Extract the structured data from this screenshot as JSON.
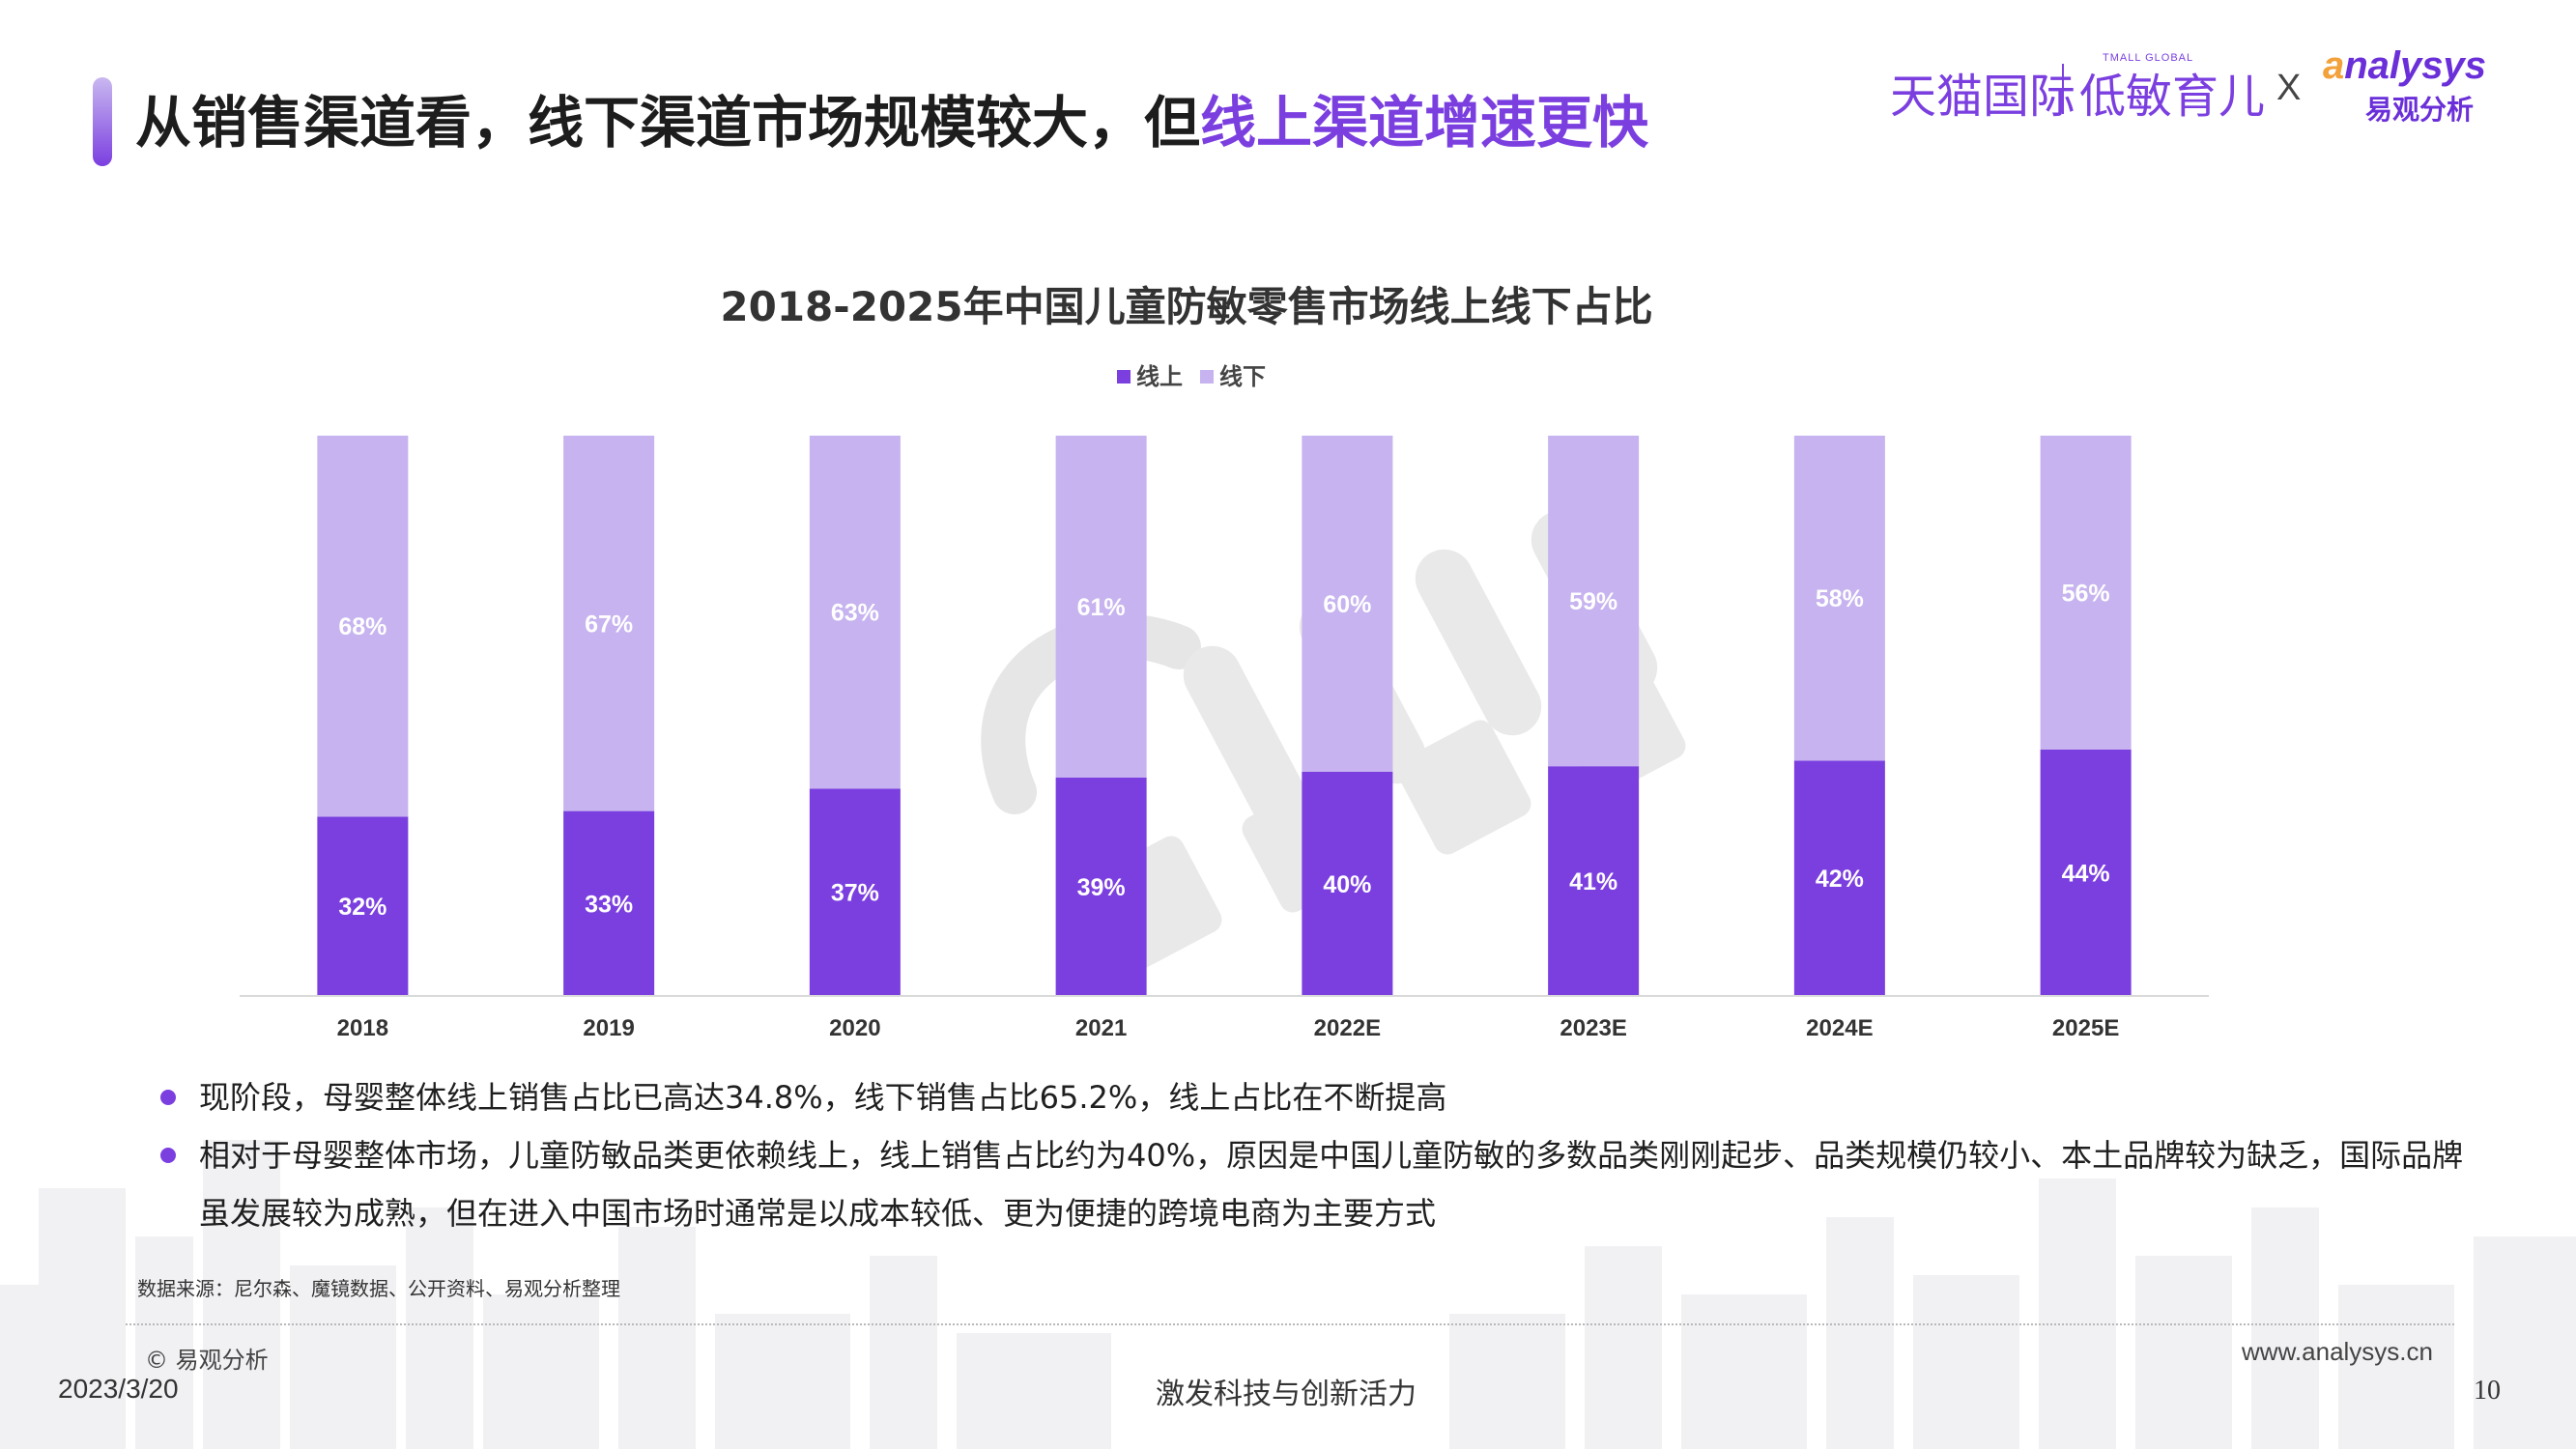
{
  "header": {
    "title_prefix": "从销售渠道看，线下渠道市场规模较大，但",
    "title_highlight": "线上渠道增速更快"
  },
  "brand": {
    "tmall_small": "TMALL GLOBAL",
    "tmall": "天猫国际",
    "sub": "低敏育儿",
    "x": "X",
    "analysys_a": "a",
    "analysys_rest": "nalysys",
    "yiguan": "易观分析"
  },
  "colors": {
    "accent": "#7b3fe0",
    "online": "#7b3fe0",
    "offline": "#c6b3ef"
  },
  "chart_data": {
    "type": "bar",
    "stacked": true,
    "title": "2018-2025年中国儿童防敏零售市场线上线下占比",
    "categories": [
      "2018",
      "2019",
      "2020",
      "2021",
      "2022E",
      "2023E",
      "2024E",
      "2025E"
    ],
    "series": [
      {
        "name": "线上",
        "values": [
          32,
          33,
          37,
          39,
          40,
          41,
          42,
          44
        ],
        "labels": [
          "32%",
          "33%",
          "37%",
          "39%",
          "40%",
          "41%",
          "42%",
          "44%"
        ]
      },
      {
        "name": "线下",
        "values": [
          68,
          67,
          63,
          61,
          60,
          59,
          58,
          56
        ],
        "labels": [
          "68%",
          "67%",
          "63%",
          "61%",
          "60%",
          "59%",
          "58%",
          "56%"
        ]
      }
    ],
    "ylim": [
      0,
      100
    ],
    "unit": "%",
    "legend_position": "top-center",
    "grid": false
  },
  "bullets": [
    {
      "text": "现阶段，母婴整体线上销售占比已高达34.8%，线下销售占比65.2%，线上占比在不断提高"
    },
    {
      "text": "相对于母婴整体市场，儿童防敏品类更依赖线上，线上销售占比约为40%，原因是中国儿童防敏的多数品类刚刚起步、品类规模仍较小、本土品牌较为缺乏，国际品牌虽发展较为成熟，但在进入中国市场时通常是以成本较低、更为便捷的跨境电商为主要方式"
    }
  ],
  "footer": {
    "source": "数据来源：尼尔森、魔镜数据、公开资料、易观分析整理",
    "copyright": "© 易观分析",
    "website": "www.analysys.cn",
    "date": "2023/3/20",
    "slogan": "激发科技与创新活力",
    "page": "10"
  }
}
